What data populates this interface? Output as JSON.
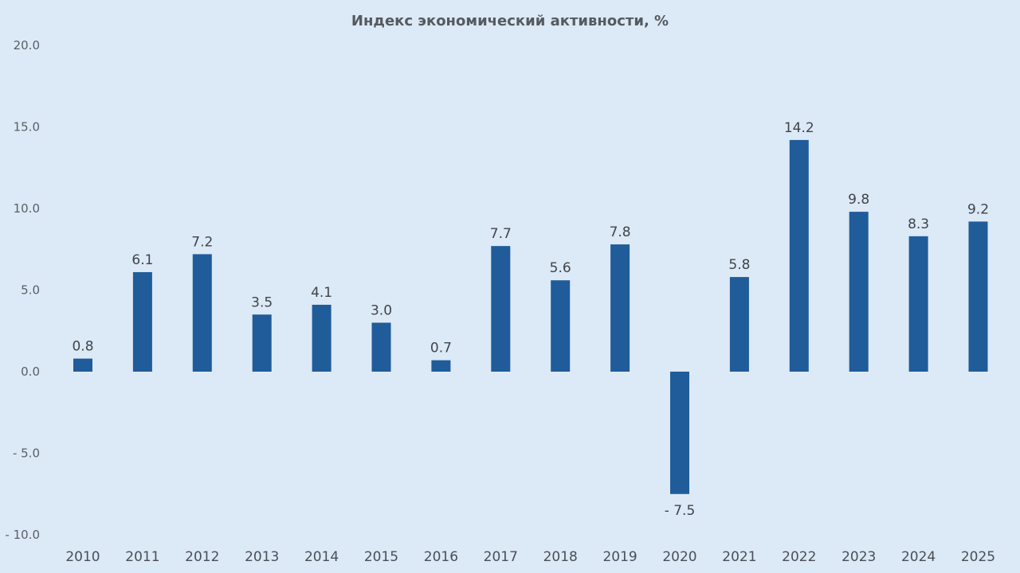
{
  "chart_data": {
    "type": "bar",
    "title": "Индекс экономический активности, %",
    "xlabel": "",
    "ylabel": "",
    "ylim": [
      -10,
      20
    ],
    "yticks": [
      20,
      15,
      10,
      5,
      0,
      -5,
      -10
    ],
    "ytick_labels": [
      "20.0",
      "15.0",
      "10.0",
      "5.0",
      "0.0",
      "- 5.0",
      "- 10.0"
    ],
    "grid": false,
    "categories": [
      "2010",
      "2011",
      "2012",
      "2013",
      "2014",
      "2015",
      "2016",
      "2017",
      "2018",
      "2019",
      "2020",
      "2021",
      "2022",
      "2023",
      "2024",
      "2025"
    ],
    "values": [
      0.8,
      6.1,
      7.2,
      3.5,
      4.1,
      3.0,
      0.7,
      7.7,
      5.6,
      7.8,
      -7.5,
      5.8,
      14.2,
      9.8,
      8.3,
      9.2
    ],
    "data_labels": [
      "0.8",
      "6.1",
      "7.2",
      "3.5",
      "4.1",
      "3.0",
      "0.7",
      "7.7",
      "5.6",
      "7.8",
      "- 7.5",
      "5.8",
      "14.2",
      "9.8",
      "8.3",
      "9.2"
    ],
    "bar_color": "#1f5c99",
    "highlight_label_color": "#e3001b",
    "highlight_index": 15
  }
}
